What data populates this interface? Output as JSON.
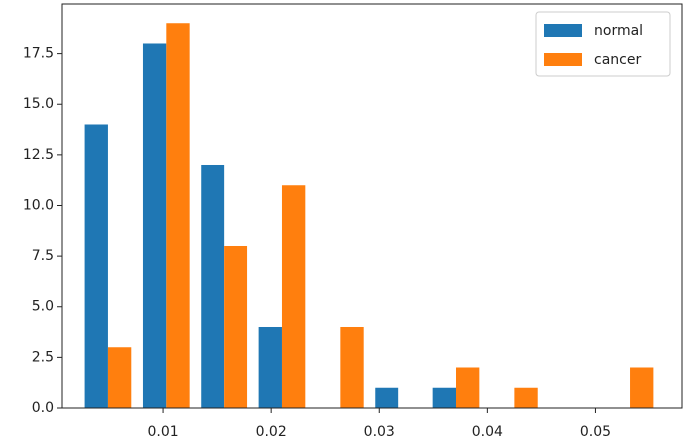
{
  "chart_data": {
    "type": "histogram",
    "bins": [
      0.0022,
      0.0076,
      0.013,
      0.0183,
      0.0237,
      0.0291,
      0.0344,
      0.0398,
      0.0452,
      0.0505,
      0.0559
    ],
    "series": [
      {
        "name": "normal",
        "color": "#1f77b4",
        "values": [
          14,
          18,
          12,
          4,
          0,
          1,
          1,
          0,
          0,
          0
        ]
      },
      {
        "name": "cancer",
        "color": "#ff7f0e",
        "values": [
          3,
          19,
          8,
          11,
          4,
          0,
          2,
          1,
          0,
          2
        ]
      }
    ],
    "xlim": [
      0.00065,
      0.0581
    ],
    "ylim": [
      0,
      19.95
    ],
    "xticks": [
      0.01,
      0.02,
      0.03,
      0.04,
      0.05
    ],
    "yticks": [
      {
        "value": 0,
        "label": "0.0"
      },
      {
        "value": 2.5,
        "label": "2.5"
      },
      {
        "value": 5,
        "label": "5.0"
      },
      {
        "value": 7.5,
        "label": "7.5"
      },
      {
        "value": 10,
        "label": "10.0"
      },
      {
        "value": 12.5,
        "label": "12.5"
      },
      {
        "value": 15,
        "label": "15.0"
      },
      {
        "value": 17.5,
        "label": "17.5"
      }
    ],
    "legend": "upper right"
  }
}
